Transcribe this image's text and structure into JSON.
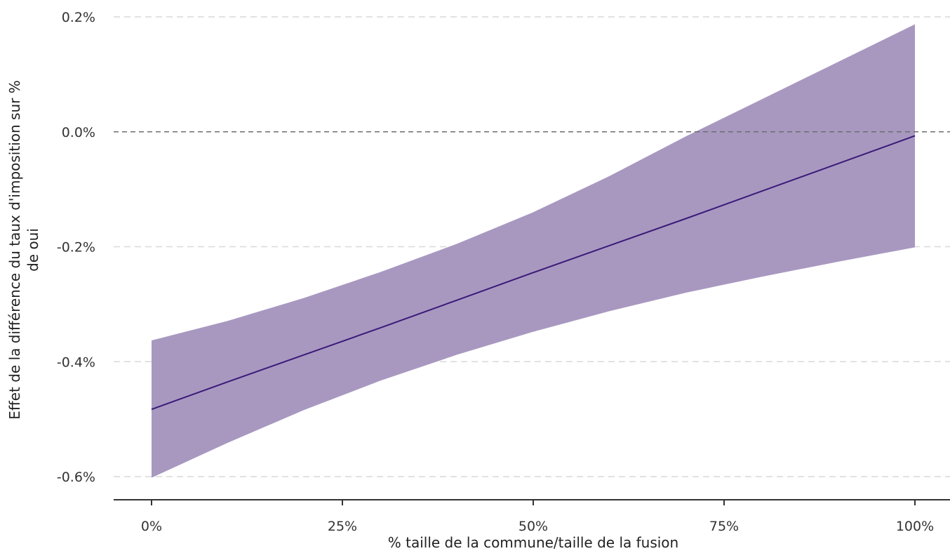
{
  "chart_data": {
    "type": "line",
    "title": "",
    "xlabel": "% taille de la commune/taille de la fusion",
    "ylabel_lines": [
      "Effet de la différence du taux d'imposition sur %",
      "de oui"
    ],
    "x": [
      0,
      0.1,
      0.2,
      0.3,
      0.4,
      0.5,
      0.6,
      0.7,
      0.8,
      0.9,
      1.0
    ],
    "series": [
      {
        "kind": "estimate",
        "values": [
          -0.483,
          -0.435,
          -0.388,
          -0.341,
          -0.293,
          -0.245,
          -0.198,
          -0.151,
          -0.103,
          -0.055,
          -0.007
        ]
      },
      {
        "kind": "ci_upper",
        "values": [
          -0.363,
          -0.329,
          -0.289,
          -0.244,
          -0.195,
          -0.14,
          -0.077,
          -0.008,
          0.057,
          0.122,
          0.187
        ]
      },
      {
        "kind": "ci_lower",
        "values": [
          -0.602,
          -0.541,
          -0.484,
          -0.433,
          -0.388,
          -0.348,
          -0.312,
          -0.28,
          -0.252,
          -0.226,
          -0.201
        ]
      }
    ],
    "xlim": [
      0,
      1
    ],
    "ylim": [
      -0.6,
      0.2
    ],
    "x_ticks": [
      0,
      0.25,
      0.5,
      0.75,
      1.0
    ],
    "x_tick_labels": [
      "0%",
      "25%",
      "50%",
      "75%",
      "100%"
    ],
    "y_ticks": [
      0.2,
      0.0,
      -0.2,
      -0.4,
      -0.6
    ],
    "y_tick_labels": [
      "0.2%",
      "0.0%",
      "-0.2%",
      "-0.4%",
      "-0.6%"
    ],
    "reference_line_y": 0.0,
    "grid": "horizontal dashed",
    "colors": {
      "band": "#a898c0",
      "line": "#3b1a78",
      "grid": "#d9d9d9",
      "reference": "#6e6e6e",
      "axis": "#333333"
    }
  }
}
